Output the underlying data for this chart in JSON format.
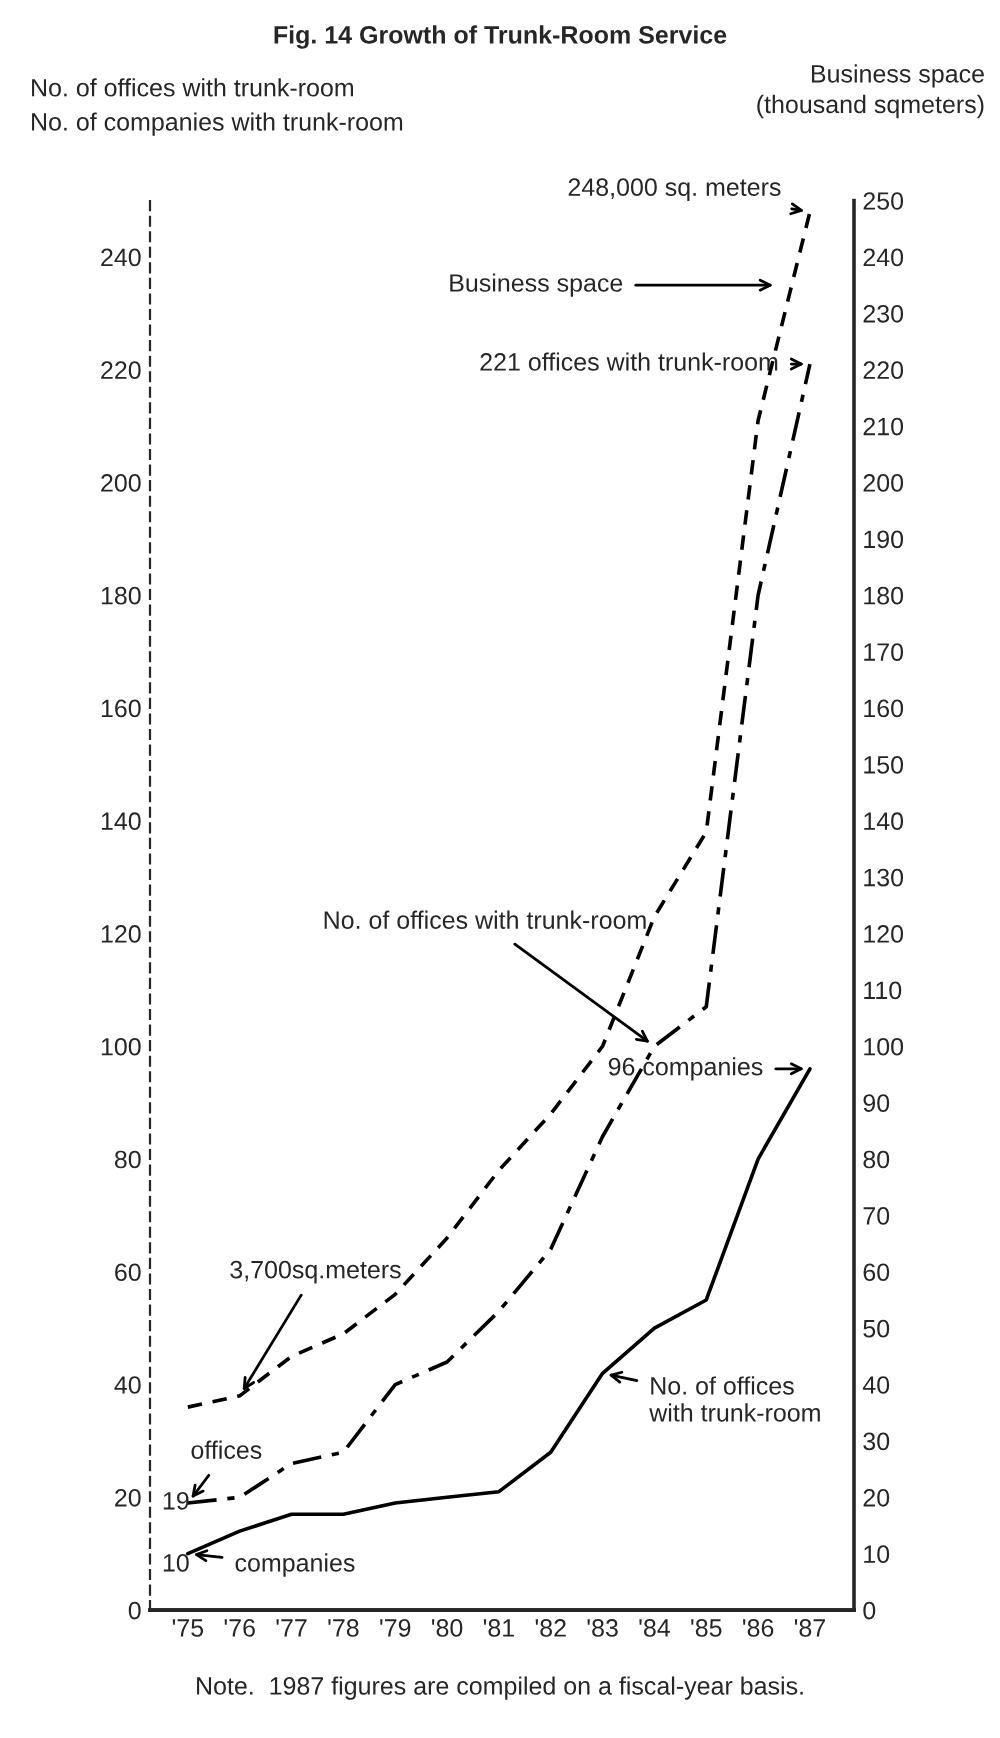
{
  "chart_data": {
    "type": "line",
    "title": "Fig. 14 Growth of Trunk-Room Service",
    "ylabel": "No. of offices with trunk-room\nNo. of companies with trunk-room",
    "y2label": "Business space\n(thousand sqmeters)",
    "categories": [
      "'75",
      "'76",
      "'77",
      "'78",
      "'79",
      "'80",
      "'81",
      "'82",
      "'83",
      "'84",
      "'85",
      "'86",
      "'87"
    ],
    "series": [
      {
        "color": "#000000",
        "line_style": "dashed",
        "axis": "y2",
        "values": [
          36,
          38,
          45,
          49,
          56,
          66,
          78,
          88,
          100,
          123,
          138,
          211,
          248
        ]
      },
      {
        "color": "#000000",
        "line_style": "dashdot",
        "values": [
          19,
          20,
          26,
          28,
          40,
          44,
          53,
          64,
          84,
          100,
          107,
          180,
          221
        ]
      },
      {
        "color": "#000000",
        "line_style": "solid",
        "values": [
          10,
          14,
          17,
          17,
          19,
          20,
          21,
          28,
          42,
          50,
          55,
          80,
          96
        ]
      }
    ],
    "ylim": [
      0,
      250
    ],
    "yticks": [
      0,
      20,
      40,
      60,
      80,
      100,
      120,
      140,
      160,
      180,
      200,
      220,
      240
    ],
    "y2lim": [
      0,
      250
    ],
    "y2ticks": [
      0,
      10,
      20,
      30,
      40,
      50,
      60,
      70,
      80,
      90,
      100,
      110,
      120,
      130,
      140,
      150,
      160,
      170,
      180,
      190,
      200,
      210,
      220,
      230,
      240,
      250
    ],
    "grid": false,
    "legend": false,
    "annotations": [
      {
        "text": "248,000 sq. meters",
        "x": "'87",
        "y": 248
      },
      "Business space",
      {
        "text": "221 offices with trunk-room",
        "x": "'87",
        "y": 221
      },
      {
        "text": "No. of offices with trunk-room",
        "x": "'84",
        "y": 100
      },
      {
        "text": "96 companies",
        "x": "'87",
        "y": 96
      },
      {
        "text": "3,700sq.meters",
        "x": "'76",
        "y": 38
      },
      {
        "text": "offices",
        "x": "'75",
        "y": 19
      },
      "19",
      "10",
      {
        "text": "companies",
        "x": "'75",
        "y": 10
      },
      {
        "text": "No. of offices\nwith trunk-room",
        "x": "'83",
        "y": 42
      },
      "Note.  1987 figures are compiled on a fiscal-year basis."
    ]
  }
}
